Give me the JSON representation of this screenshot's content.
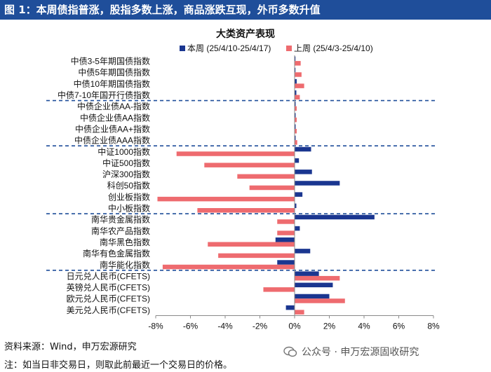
{
  "figure_title": "图 1：本周债指普涨，股指多数上涨，商品涨跌互现，外币多数升值",
  "chart_data": {
    "type": "bar",
    "orientation": "horizontal",
    "title": "大类资产表现",
    "categories": [
      "中债3-5年期国债指数",
      "中债5年期国债指数",
      "中债10年期国债指数",
      "中债7-10年国开行债指数",
      "中债企业债AA-指数",
      "中债企业债AA指数",
      "中债企业债AA+指数",
      "中债企业债AAA指数",
      "中证1000指数",
      "中证500指数",
      "沪深300指数",
      "科创50指数",
      "创业板指数",
      "中小板指数",
      "南华贵金属指数",
      "南华农产品指数",
      "南华黑色指数",
      "南华有色金属指数",
      "南华能化指数",
      "日元兑人民币(CFETS)",
      "英镑兑人民币(CFETS)",
      "欧元兑人民币(CFETS)",
      "美元兑人民币(CFETS)"
    ],
    "series": [
      {
        "name": "本周 (25/4/10-25/4/17)",
        "color": "#1a3690",
        "values": [
          0.05,
          0.05,
          0.12,
          0.1,
          0.06,
          0.06,
          0.06,
          0.06,
          0.95,
          0.25,
          1.0,
          2.6,
          0.45,
          0.1,
          4.6,
          0.3,
          -1.1,
          0.9,
          -1.0,
          1.4,
          2.2,
          2.0,
          -0.5
        ]
      },
      {
        "name": "上周 (25/4/3-25/4/10)",
        "color": "#ee6b6f",
        "values": [
          0.35,
          0.4,
          0.55,
          0.3,
          0.12,
          0.12,
          0.12,
          0.15,
          -6.8,
          -5.2,
          -3.3,
          -2.6,
          -7.9,
          -5.6,
          -1.0,
          -1.0,
          -5.0,
          -4.4,
          -7.6,
          2.6,
          -1.8,
          2.9,
          0.55
        ]
      }
    ],
    "group_separators_after": [
      "中债7-10年国开行债指数",
      "中债企业债AAA指数",
      "中小板指数",
      "南华能化指数"
    ],
    "xlim": [
      -8,
      8
    ],
    "xticks": [
      "-8%",
      "-6%",
      "-4%",
      "-2%",
      "0%",
      "2%",
      "4%",
      "6%",
      "8%"
    ],
    "xlabel": "",
    "ylabel": "",
    "legend_position": "top-right"
  },
  "source_text": "资料来源：Wind，申万宏源研究",
  "footnote_text": "注：如当日非交易日，则取此前最近一个交易日的价格。",
  "watermark_text": "公众号 · 申万宏源固收研究",
  "colors": {
    "title_bar": "#1f4e9a",
    "separator": "#1f4e9a"
  }
}
